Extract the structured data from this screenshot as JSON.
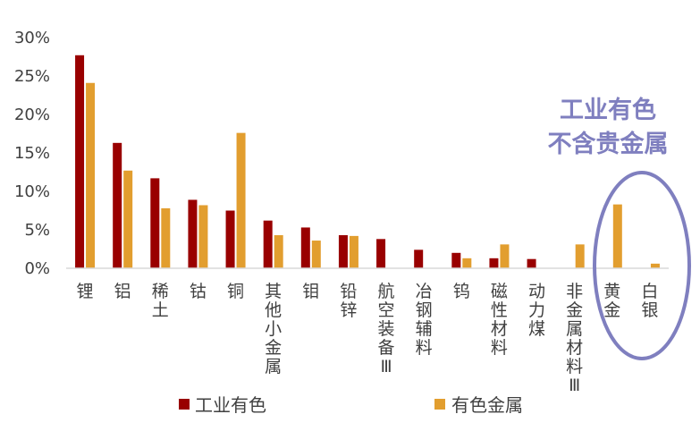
{
  "chart_data": {
    "type": "bar",
    "categories": [
      "锂",
      "铝",
      "稀土",
      "钴",
      "铜",
      "其他小金属",
      "钼",
      "铅锌",
      "航空装备Ⅲ",
      "冶钢辅料",
      "钨",
      "磁性材料",
      "动力煤",
      "非金属材料Ⅲ",
      "黄金",
      "白银"
    ],
    "series": [
      {
        "name": "工业有色",
        "color": "#990000",
        "values": [
          27.7,
          16.3,
          11.7,
          8.9,
          7.5,
          6.2,
          5.3,
          4.3,
          3.8,
          2.4,
          2.0,
          1.3,
          1.2,
          null,
          null,
          null
        ]
      },
      {
        "name": "有色金属",
        "color": "#E29E2F",
        "values": [
          24.1,
          12.7,
          7.8,
          8.2,
          17.6,
          4.3,
          3.6,
          4.2,
          null,
          null,
          1.3,
          3.1,
          null,
          3.1,
          8.3,
          0.6
        ]
      }
    ],
    "ylim": [
      0,
      30
    ],
    "yticks": [
      "0%",
      "5%",
      "10%",
      "15%",
      "20%",
      "25%",
      "30%"
    ],
    "ytick_values": [
      0,
      5,
      10,
      15,
      20,
      25,
      30
    ],
    "legend_position": "bottom",
    "annotation": {
      "lines": [
        "工业有色",
        "不含贵金属"
      ],
      "color": "#7F7FBF"
    }
  }
}
